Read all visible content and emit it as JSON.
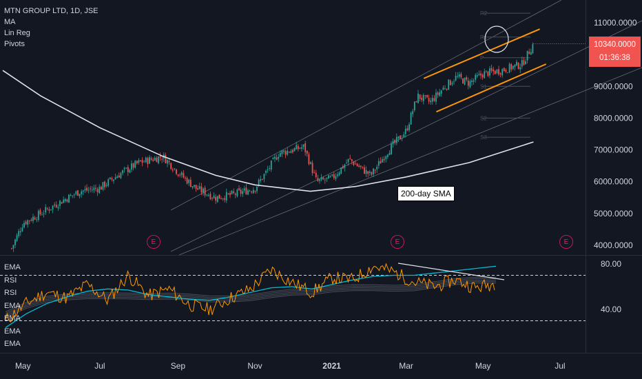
{
  "chart_title": "MTN GROUP LTD, 1D, JSE",
  "legend_main": [
    "MA",
    "Lin Reg",
    "Pivots"
  ],
  "legend_indicator": [
    "EMA",
    "RSI",
    "RSI",
    "EMA",
    "EMA",
    "EMA",
    "EMA"
  ],
  "price_tag": {
    "price": "10340.0000",
    "countdown": "01:36:38"
  },
  "annotation": "200-day SMA",
  "earnings_marker": "E",
  "pivot_labels": [
    "R2",
    "R1",
    "P",
    "S1",
    "S2",
    "S3"
  ],
  "colors": {
    "background": "#131722",
    "up": "#26a69a",
    "down": "#ef5350",
    "channel": "#ff9800",
    "sma": "#e0e3eb",
    "rsi": "#ff9800",
    "ema": "#00bcd4",
    "price_tag": "#f05350"
  },
  "chart_data": [
    {
      "type": "candlestick",
      "title": "MTN GROUP LTD, 1D, JSE",
      "x_ticks": [
        "May",
        "Jul",
        "Sep",
        "Nov",
        "2021",
        "Mar",
        "May",
        "Jul"
      ],
      "y_ticks": [
        4000,
        5000,
        6000,
        7000,
        8000,
        9000,
        10000,
        11000
      ],
      "y_tick_labels": [
        "4000.0000",
        "5000.0000",
        "6000.0000",
        "7000.0000",
        "8000.0000",
        "9000.0000",
        "",
        "11000.0000"
      ],
      "ylim": [
        3800,
        11500
      ],
      "last_price": 10340,
      "close_path": [
        [
          "2020-04-22",
          3900
        ],
        [
          "2020-05-01",
          4700
        ],
        [
          "2020-05-15",
          5000
        ],
        [
          "2020-06-01",
          5400
        ],
        [
          "2020-06-15",
          5700
        ],
        [
          "2020-07-01",
          5800
        ],
        [
          "2020-07-15",
          6200
        ],
        [
          "2020-08-01",
          6600
        ],
        [
          "2020-08-20",
          6800
        ],
        [
          "2020-09-01",
          6300
        ],
        [
          "2020-09-15",
          5800
        ],
        [
          "2020-10-01",
          5500
        ],
        [
          "2020-10-15",
          5600
        ],
        [
          "2020-11-01",
          5800
        ],
        [
          "2020-11-10",
          6300
        ],
        [
          "2020-11-20",
          6900
        ],
        [
          "2020-12-01",
          7000
        ],
        [
          "2020-12-10",
          7100
        ],
        [
          "2020-12-20",
          6000
        ],
        [
          "2021-01-01",
          6100
        ],
        [
          "2021-01-15",
          6700
        ],
        [
          "2021-01-25",
          6400
        ],
        [
          "2021-02-01",
          6200
        ],
        [
          "2021-02-15",
          7000
        ],
        [
          "2021-03-01",
          7600
        ],
        [
          "2021-03-10",
          8700
        ],
        [
          "2021-03-20",
          8500
        ],
        [
          "2021-04-01",
          9000
        ],
        [
          "2021-04-10",
          9300
        ],
        [
          "2021-04-20",
          9100
        ],
        [
          "2021-05-01",
          9400
        ],
        [
          "2021-05-15",
          9500
        ],
        [
          "2021-06-01",
          9700
        ],
        [
          "2021-06-10",
          10340
        ]
      ],
      "sma_200": [
        [
          "2020-04-15",
          9500
        ],
        [
          "2020-05-15",
          8700
        ],
        [
          "2020-07-01",
          7700
        ],
        [
          "2020-08-20",
          6800
        ],
        [
          "2020-10-01",
          6200
        ],
        [
          "2020-11-01",
          5900
        ],
        [
          "2020-12-15",
          5700
        ],
        [
          "2021-01-20",
          5850
        ],
        [
          "2021-03-01",
          6150
        ],
        [
          "2021-04-20",
          6600
        ],
        [
          "2021-06-10",
          7250
        ]
      ],
      "channel": {
        "upper": [
          [
            "2021-03-15",
            9250
          ],
          [
            "2021-06-15",
            10800
          ]
        ],
        "lower": [
          [
            "2021-03-25",
            8200
          ],
          [
            "2021-06-20",
            9700
          ]
        ]
      }
    },
    {
      "type": "line",
      "title": "",
      "y_ticks": [
        40,
        80
      ],
      "y_tick_labels": [
        "40.00",
        "80.00"
      ],
      "ylim": [
        20,
        85
      ],
      "reference_levels": [
        70,
        30
      ],
      "series": [
        {
          "values": [
            30,
            45,
            55,
            50,
            62,
            48,
            70,
            52,
            58,
            44,
            40,
            50,
            58,
            75,
            64,
            55,
            68,
            66,
            78,
            73,
            64,
            60,
            66,
            59,
            63
          ]
        },
        {
          "values": [
            24,
            36,
            45,
            51,
            56,
            58,
            57,
            53,
            51,
            49,
            48,
            51,
            55,
            59,
            60,
            58,
            62,
            66,
            69,
            70,
            70,
            72,
            74,
            76,
            78
          ]
        }
      ]
    }
  ]
}
